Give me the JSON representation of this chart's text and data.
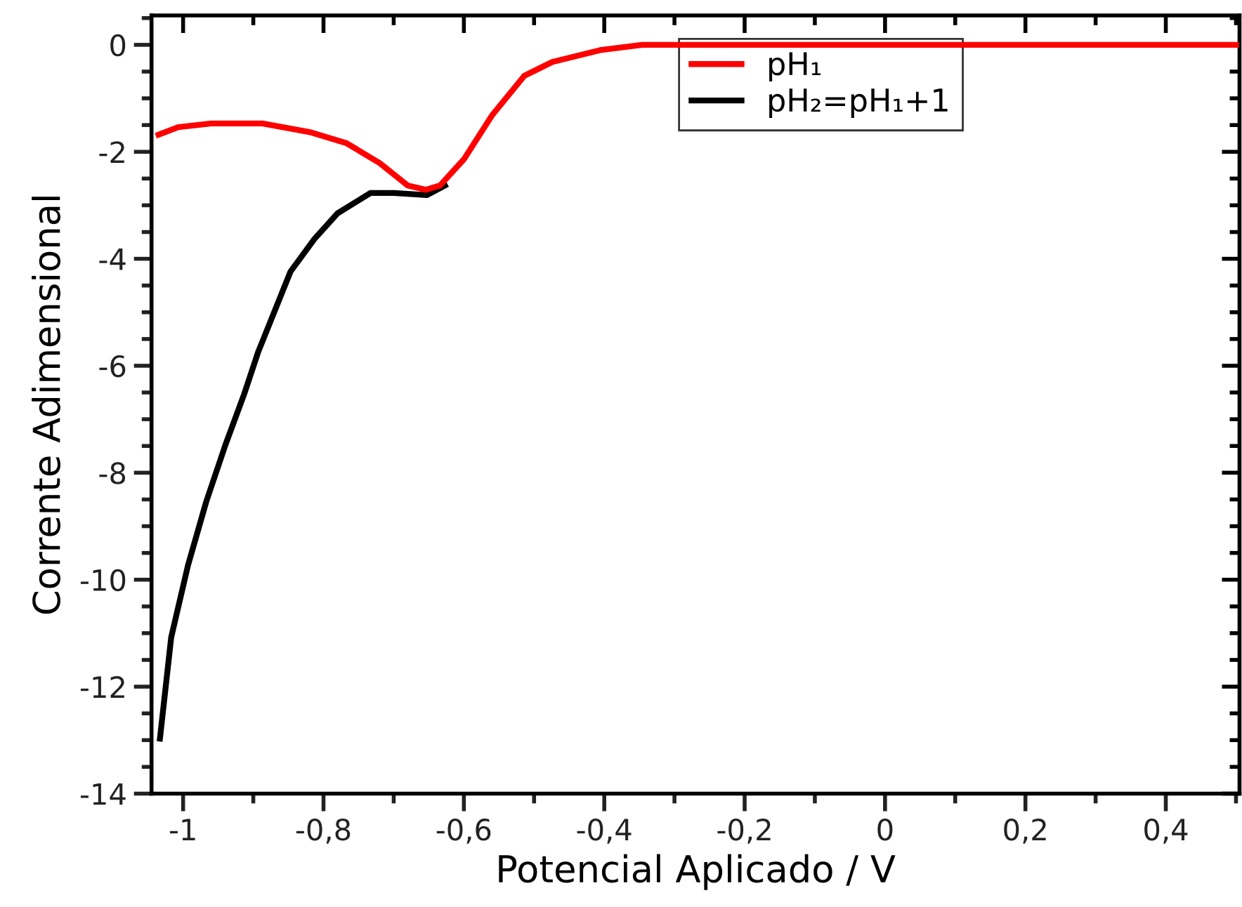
{
  "chart_data": {
    "type": "line",
    "xlabel": "Potencial Aplicado / V",
    "ylabel": "Corrente Adimensional",
    "xlim": [
      -1.045,
      0.505
    ],
    "ylim": [
      -14,
      0.55
    ],
    "xticks": [
      {
        "value": -1,
        "label": "-1"
      },
      {
        "value": -0.8,
        "label": "-0,8"
      },
      {
        "value": -0.6,
        "label": "-0,6"
      },
      {
        "value": -0.4,
        "label": "-0,4"
      },
      {
        "value": -0.2,
        "label": "-0,2"
      },
      {
        "value": 0,
        "label": "0"
      },
      {
        "value": 0.2,
        "label": "0,2"
      },
      {
        "value": 0.4,
        "label": "0,4"
      }
    ],
    "yticks": [
      -14,
      -12,
      -10,
      -8,
      -6,
      -4,
      -2,
      0
    ],
    "grid": false,
    "legend": "top right",
    "marker": "none",
    "line_style": "solid",
    "series": [
      {
        "name": "pH₁",
        "color": "#ff0000",
        "x": [
          -1.035,
          -1.007,
          -0.96,
          -0.887,
          -0.82,
          -0.767,
          -0.72,
          -0.68,
          -0.654,
          -0.634,
          -0.6,
          -0.56,
          -0.514,
          -0.474,
          -0.406,
          -0.346,
          0,
          0.5
        ],
        "values": [
          -1.68,
          -1.54,
          -1.47,
          -1.47,
          -1.63,
          -1.84,
          -2.21,
          -2.63,
          -2.71,
          -2.63,
          -2.14,
          -1.32,
          -0.58,
          -0.32,
          -0.1,
          0,
          0,
          0
        ]
      },
      {
        "name": "pH₂=pH₁+1",
        "color": "#000000",
        "x": [
          -1.033,
          -1.017,
          -0.993,
          -0.967,
          -0.94,
          -0.913,
          -0.893,
          -0.847,
          -0.813,
          -0.78,
          -0.733,
          -0.7,
          -0.653,
          -0.627
        ],
        "values": [
          -12.97,
          -11.08,
          -9.73,
          -8.54,
          -7.49,
          -6.53,
          -5.74,
          -4.24,
          -3.63,
          -3.15,
          -2.77,
          -2.77,
          -2.81,
          -2.63
        ]
      }
    ]
  }
}
